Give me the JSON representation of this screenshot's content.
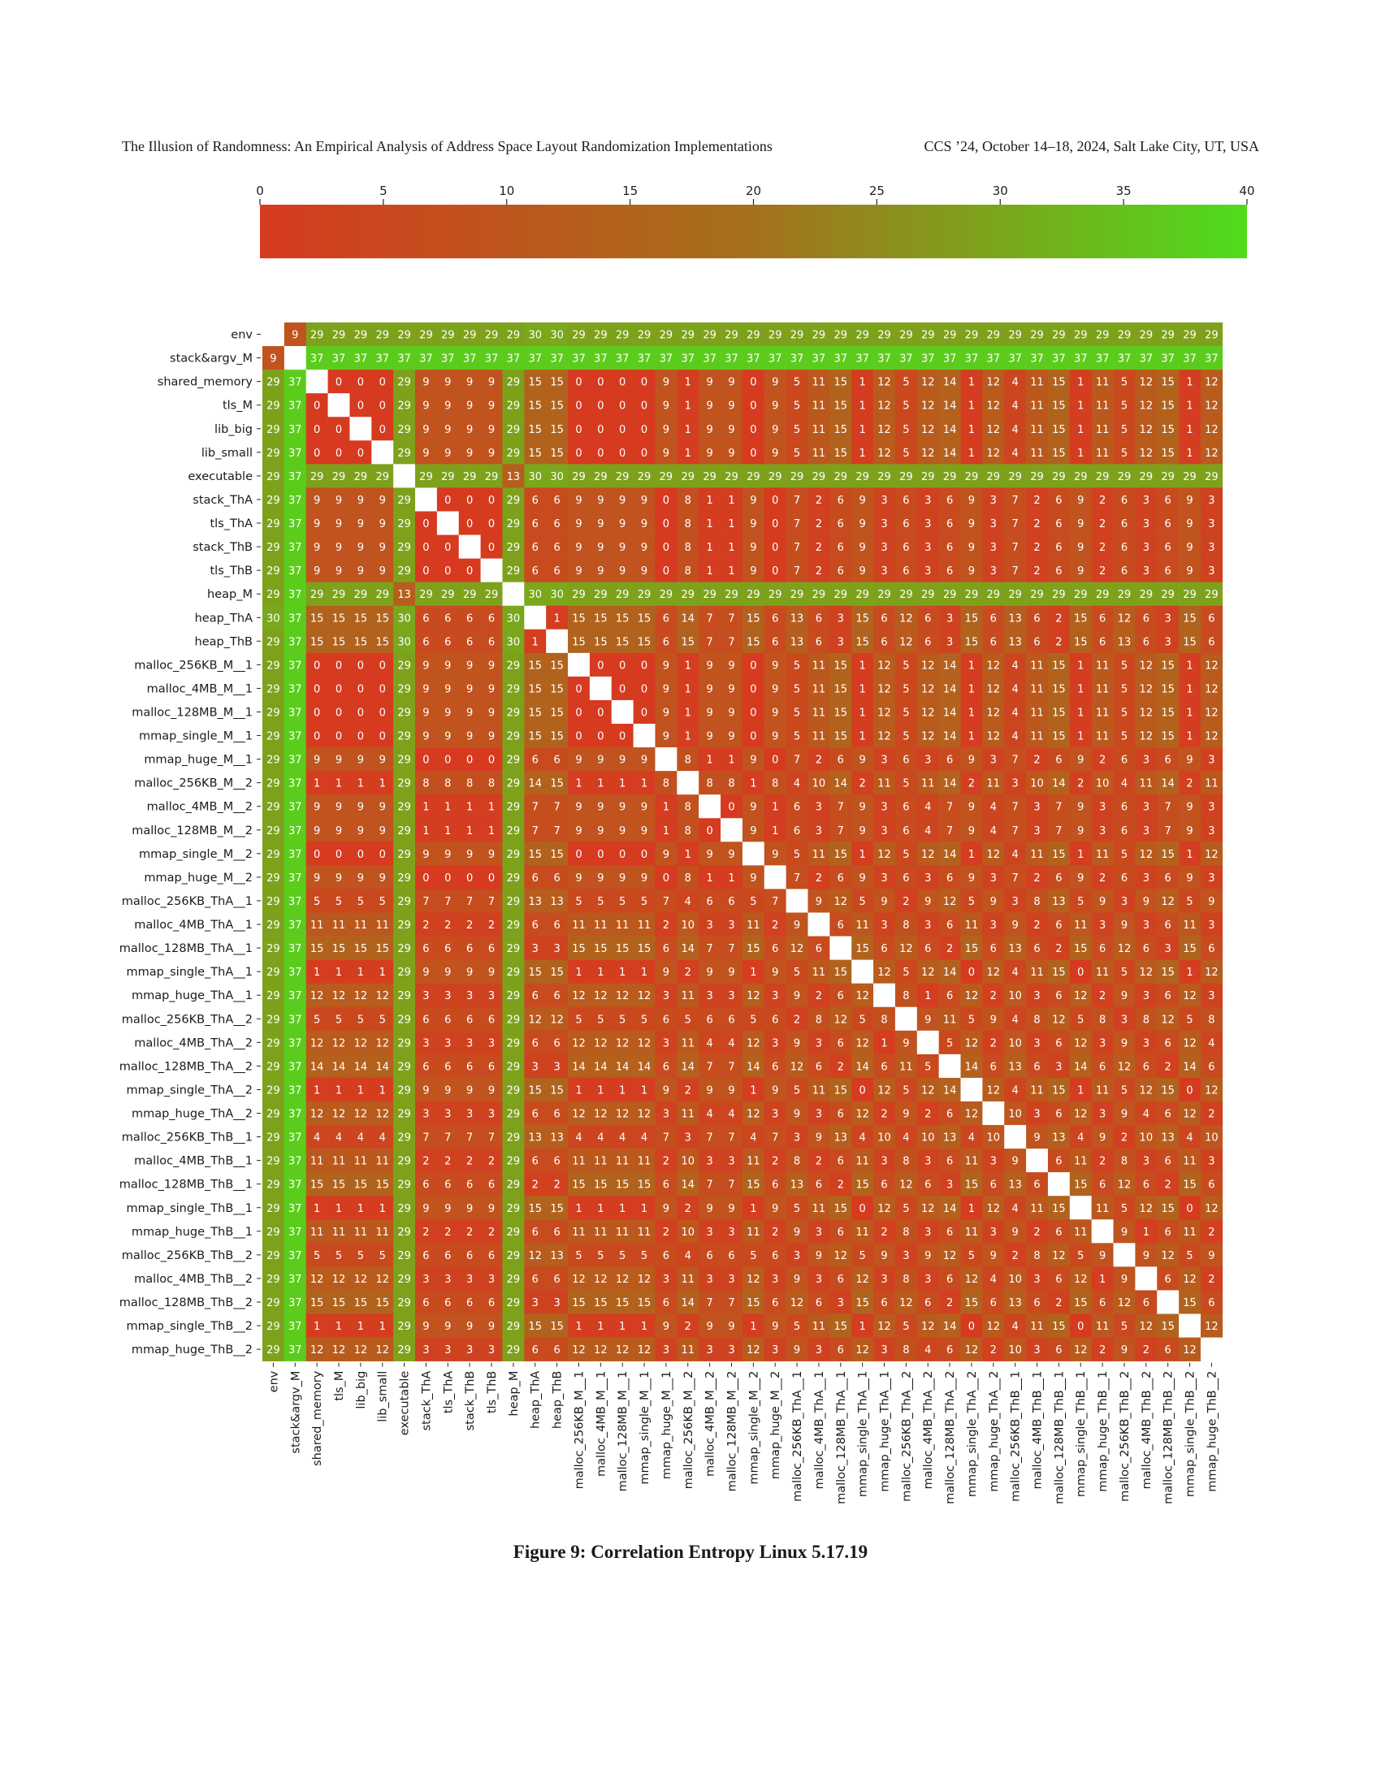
{
  "header": {
    "left": "The Illusion of Randomness: An Empirical Analysis of Address Space Layout Randomization Implementations",
    "right": "CCS ’24, October 14–18, 2024, Salt Lake City, UT, USA"
  },
  "figure": {
    "caption": "Figure 9: Correlation Entropy Linux 5.17.19"
  },
  "chart_data": {
    "type": "heatmap",
    "title": "",
    "xlabel": "",
    "ylabel": "",
    "colorbar": {
      "min": 0,
      "max": 40,
      "ticks": [
        "0",
        "5",
        "10",
        "15",
        "20",
        "25",
        "30",
        "35",
        "40"
      ],
      "colors": [
        "#d63a1f",
        "#a5711c",
        "#4fdc1c"
      ]
    },
    "diagonal_color": "#ffffff",
    "labels": [
      "env",
      "stack&argv_M",
      "shared_memory",
      "tls_M",
      "lib_big",
      "lib_small",
      "executable",
      "stack_ThA",
      "tls_ThA",
      "stack_ThB",
      "tls_ThB",
      "heap_M",
      "heap_ThA",
      "heap_ThB",
      "malloc_256KB_M__1",
      "malloc_4MB_M__1",
      "malloc_128MB_M__1",
      "mmap_single_M__1",
      "mmap_huge_M__1",
      "malloc_256KB_M__2",
      "malloc_4MB_M__2",
      "malloc_128MB_M__2",
      "mmap_single_M__2",
      "mmap_huge_M__2",
      "malloc_256KB_ThA__1",
      "malloc_4MB_ThA__1",
      "malloc_128MB_ThA__1",
      "mmap_single_ThA__1",
      "mmap_huge_ThA__1",
      "malloc_256KB_ThA__2",
      "malloc_4MB_ThA__2",
      "malloc_128MB_ThA__2",
      "mmap_single_ThA__2",
      "mmap_huge_ThA__2",
      "malloc_256KB_ThB__1",
      "malloc_4MB_ThB__1",
      "malloc_128MB_ThB__1",
      "mmap_single_ThB__1",
      "mmap_huge_ThB__1",
      "malloc_256KB_ThB__2",
      "malloc_4MB_ThB__2",
      "malloc_128MB_ThB__2",
      "mmap_single_ThB__2",
      "mmap_huge_ThB__2"
    ],
    "rows": [
      "- 9 29 29 29 29 29 29 29 29 29 29 30 30 29 29 29 29 29 29 29 29 29 29 29 29 29 29 29 29 29 29 29 29 29 29 29 29 29 29 29 29 29 29",
      "9 - 37 37 37 37 37 37 37 37 37 37 37 37 37 37 37 37 37 37 37 37 37 37 37 37 37 37 37 37 37 37 37 37 37 37 37 37 37 37 37 37 37 37",
      "29 37 - 0 0 0 29 9 9 9 9 29 15 15 0 0 0 0 9 1 9 9 0 9 5 11 15 1 12 5 12 14 1 12 4 11 15 1 11 5 12 15 1 12",
      "29 37 0 - 0 0 29 9 9 9 9 29 15 15 0 0 0 0 9 1 9 9 0 9 5 11 15 1 12 5 12 14 1 12 4 11 15 1 11 5 12 15 1 12",
      "29 37 0 0 - 0 29 9 9 9 9 29 15 15 0 0 0 0 9 1 9 9 0 9 5 11 15 1 12 5 12 14 1 12 4 11 15 1 11 5 12 15 1 12",
      "29 37 0 0 0 - 29 9 9 9 9 29 15 15 0 0 0 0 9 1 9 9 0 9 5 11 15 1 12 5 12 14 1 12 4 11 15 1 11 5 12 15 1 12",
      "29 37 29 29 29 29 - 29 29 29 29 13 30 30 29 29 29 29 29 29 29 29 29 29 29 29 29 29 29 29 29 29 29 29 29 29 29 29 29 29 29 29 29 29",
      "29 37 9 9 9 9 29 - 0 0 0 29 6 6 9 9 9 9 0 8 1 1 9 0 7 2 6 9 3 6 3 6 9 3 7 2 6 9 2 6 3 6 9 3",
      "29 37 9 9 9 9 29 0 - 0 0 29 6 6 9 9 9 9 0 8 1 1 9 0 7 2 6 9 3 6 3 6 9 3 7 2 6 9 2 6 3 6 9 3",
      "29 37 9 9 9 9 29 0 0 - 0 29 6 6 9 9 9 9 0 8 1 1 9 0 7 2 6 9 3 6 3 6 9 3 7 2 6 9 2 6 3 6 9 3",
      "29 37 9 9 9 9 29 0 0 0 - 29 6 6 9 9 9 9 0 8 1 1 9 0 7 2 6 9 3 6 3 6 9 3 7 2 6 9 2 6 3 6 9 3",
      "29 37 29 29 29 29 13 29 29 29 29 - 30 30 29 29 29 29 29 29 29 29 29 29 29 29 29 29 29 29 29 29 29 29 29 29 29 29 29 29 29 29 29 29",
      "30 37 15 15 15 15 30 6 6 6 6 30 - 1 15 15 15 15 6 14 7 7 15 6 13 6 3 15 6 12 6 3 15 6 13 6 2 15 6 12 6 3 15 6",
      "29 37 15 15 15 15 30 6 6 6 6 30 1 - 15 15 15 15 6 15 7 7 15 6 13 6 3 15 6 12 6 3 15 6 13 6 2 15 6 13 6 3 15 6",
      "29 37 0 0 0 0 29 9 9 9 9 29 15 15 - 0 0 0 9 1 9 9 0 9 5 11 15 1 12 5 12 14 1 12 4 11 15 1 11 5 12 15 1 12",
      "29 37 0 0 0 0 29 9 9 9 9 29 15 15 0 - 0 0 9 1 9 9 0 9 5 11 15 1 12 5 12 14 1 12 4 11 15 1 11 5 12 15 1 12",
      "29 37 0 0 0 0 29 9 9 9 9 29 15 15 0 0 - 0 9 1 9 9 0 9 5 11 15 1 12 5 12 14 1 12 4 11 15 1 11 5 12 15 1 12",
      "29 37 0 0 0 0 29 9 9 9 9 29 15 15 0 0 0 - 9 1 9 9 0 9 5 11 15 1 12 5 12 14 1 12 4 11 15 1 11 5 12 15 1 12",
      "29 37 9 9 9 9 29 0 0 0 0 29 6 6 9 9 9 9 - 8 1 1 9 0 7 2 6 9 3 6 3 6 9 3 7 2 6 9 2 6 3 6 9 3",
      "29 37 1 1 1 1 29 8 8 8 8 29 14 15 1 1 1 1 8 - 8 8 1 8 4 10 14 2 11 5 11 14 2 11 3 10 14 2 10 4 11 14 2 11",
      "29 37 9 9 9 9 29 1 1 1 1 29 7 7 9 9 9 9 1 8 - 0 9 1 6 3 7 9 3 6 4 7 9 4 7 3 7 9 3 6 3 7 9 3",
      "29 37 9 9 9 9 29 1 1 1 1 29 7 7 9 9 9 9 1 8 0 - 9 1 6 3 7 9 3 6 4 7 9 4 7 3 7 9 3 6 3 7 9 3",
      "29 37 0 0 0 0 29 9 9 9 9 29 15 15 0 0 0 0 9 1 9 9 - 9 5 11 15 1 12 5 12 14 1 12 4 11 15 1 11 5 12 15 1 12",
      "29 37 9 9 9 9 29 0 0 0 0 29 6 6 9 9 9 9 0 8 1 1 9 - 7 2 6 9 3 6 3 6 9 3 7 2 6 9 2 6 3 6 9 3",
      "29 37 5 5 5 5 29 7 7 7 7 29 13 13 5 5 5 5 7 4 6 6 5 7 - 9 12 5 9 2 9 12 5 9 3 8 13 5 9 3 9 12 5 9",
      "29 37 11 11 11 11 29 2 2 2 2 29 6 6 11 11 11 11 2 10 3 3 11 2 9 - 6 11 3 8 3 6 11 3 9 2 6 11 3 9 3 6 11 3",
      "29 37 15 15 15 15 29 6 6 6 6 29 3 3 15 15 15 15 6 14 7 7 15 6 12 6 - 15 6 12 6 2 15 6 13 6 2 15 6 12 6 3 15 6",
      "29 37 1 1 1 1 29 9 9 9 9 29 15 15 1 1 1 1 9 2 9 9 1 9 5 11 15 - 12 5 12 14 0 12 4 11 15 0 11 5 12 15 1 12",
      "29 37 12 12 12 12 29 3 3 3 3 29 6 6 12 12 12 12 3 11 3 3 12 3 9 2 6 12 - 8 1 6 12 2 10 3 6 12 2 9 3 6 12 3",
      "29 37 5 5 5 5 29 6 6 6 6 29 12 12 5 5 5 5 6 5 6 6 5 6 2 8 12 5 8 - 9 11 5 9 4 8 12 5 8 3 8 12 5 8",
      "29 37 12 12 12 12 29 3 3 3 3 29 6 6 12 12 12 12 3 11 4 4 12 3 9 3 6 12 1 9 - 5 12 2 10 3 6 12 3 9 3 6 12 4",
      "29 37 14 14 14 14 29 6 6 6 6 29 3 3 14 14 14 14 6 14 7 7 14 6 12 6 2 14 6 11 5 - 14 6 13 6 3 14 6 12 6 2 14 6",
      "29 37 1 1 1 1 29 9 9 9 9 29 15 15 1 1 1 1 9 2 9 9 1 9 5 11 15 0 12 5 12 14 - 12 4 11 15 1 11 5 12 15 0 12",
      "29 37 12 12 12 12 29 3 3 3 3 29 6 6 12 12 12 12 3 11 4 4 12 3 9 3 6 12 2 9 2 6 12 - 10 3 6 12 3 9 4 6 12 2",
      "29 37 4 4 4 4 29 7 7 7 7 29 13 13 4 4 4 4 7 3 7 7 4 7 3 9 13 4 10 4 10 13 4 10 - 9 13 4 9 2 10 13 4 10",
      "29 37 11 11 11 11 29 2 2 2 2 29 6 6 11 11 11 11 2 10 3 3 11 2 8 2 6 11 3 8 3 6 11 3 9 - 6 11 2 8 3 6 11 3",
      "29 37 15 15 15 15 29 6 6 6 6 29 2 2 15 15 15 15 6 14 7 7 15 6 13 6 2 15 6 12 6 3 15 6 13 6 - 15 6 12 6 2 15 6",
      "29 37 1 1 1 1 29 9 9 9 9 29 15 15 1 1 1 1 9 2 9 9 1 9 5 11 15 0 12 5 12 14 1 12 4 11 15 - 11 5 12 15 0 12",
      "29 37 11 11 11 11 29 2 2 2 2 29 6 6 11 11 11 11 2 10 3 3 11 2 9 3 6 11 2 8 3 6 11 3 9 2 6 11 - 9 1 6 11 2",
      "29 37 5 5 5 5 29 6 6 6 6 29 12 13 5 5 5 5 6 4 6 6 5 6 3 9 12 5 9 3 9 12 5 9 2 8 12 5 9 - 9 12 5 9",
      "29 37 12 12 12 12 29 3 3 3 3 29 6 6 12 12 12 12 3 11 3 3 12 3 9 3 6 12 3 8 3 6 12 4 10 3 6 12 1 9 - 6 12 2",
      "29 37 15 15 15 15 29 6 6 6 6 29 3 3 15 15 15 15 6 14 7 7 15 6 12 6 3 15 6 12 6 2 15 6 13 6 2 15 6 12 6 - 15 6",
      "29 37 1 1 1 1 29 9 9 9 9 29 15 15 1 1 1 1 9 2 9 9 1 9 5 11 15 1 12 5 12 14 0 12 4 11 15 0 11 5 12 15 - 12",
      "29 37 12 12 12 12 29 3 3 3 3 29 6 6 12 12 12 12 3 11 3 3 12 3 9 3 6 12 3 8 4 6 12 2 10 3 6 12 2 9 2 6 12 -"
    ]
  }
}
